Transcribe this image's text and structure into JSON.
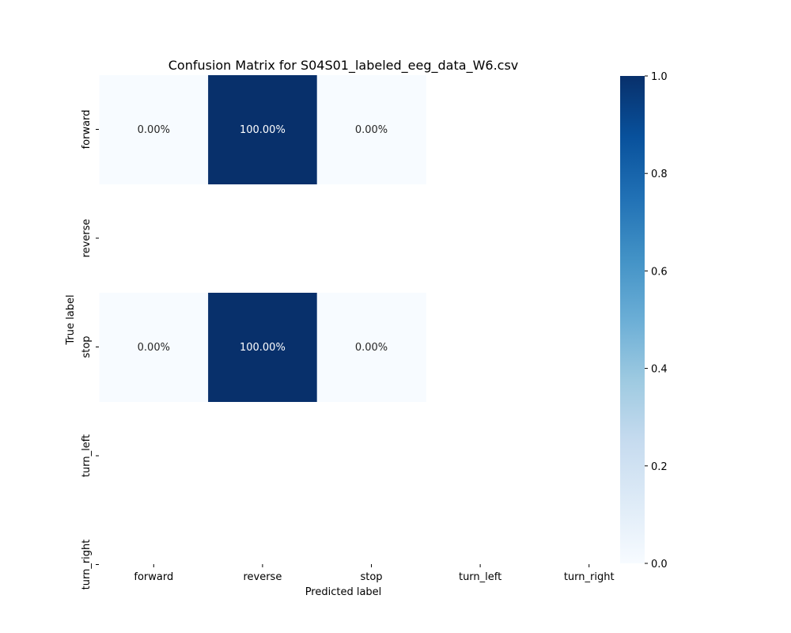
{
  "chart_data": {
    "type": "heatmap",
    "title": "Confusion Matrix for S04S01_labeled_eeg_data_W6.csv",
    "xlabel": "Predicted label",
    "ylabel": "True label",
    "x_tick_labels": [
      "forward",
      "reverse",
      "stop",
      "turn_left",
      "turn_right"
    ],
    "y_tick_labels": [
      "forward",
      "reverse",
      "stop",
      "turn_left",
      "turn_right"
    ],
    "cells": [
      {
        "row": "forward",
        "col": "forward",
        "value": 0.0,
        "label": "0.00%"
      },
      {
        "row": "forward",
        "col": "reverse",
        "value": 1.0,
        "label": "100.00%"
      },
      {
        "row": "forward",
        "col": "stop",
        "value": 0.0,
        "label": "0.00%"
      },
      {
        "row": "stop",
        "col": "forward",
        "value": 0.0,
        "label": "0.00%"
      },
      {
        "row": "stop",
        "col": "reverse",
        "value": 1.0,
        "label": "100.00%"
      },
      {
        "row": "stop",
        "col": "stop",
        "value": 0.0,
        "label": "0.00%"
      }
    ],
    "colormap": "Blues",
    "colors": {
      "low": "#f7fbff",
      "high": "#08306b"
    },
    "colorbar": {
      "range": [
        0.0,
        1.0
      ],
      "ticks": [
        "0.0",
        "0.2",
        "0.4",
        "0.6",
        "0.8",
        "1.0"
      ]
    }
  }
}
